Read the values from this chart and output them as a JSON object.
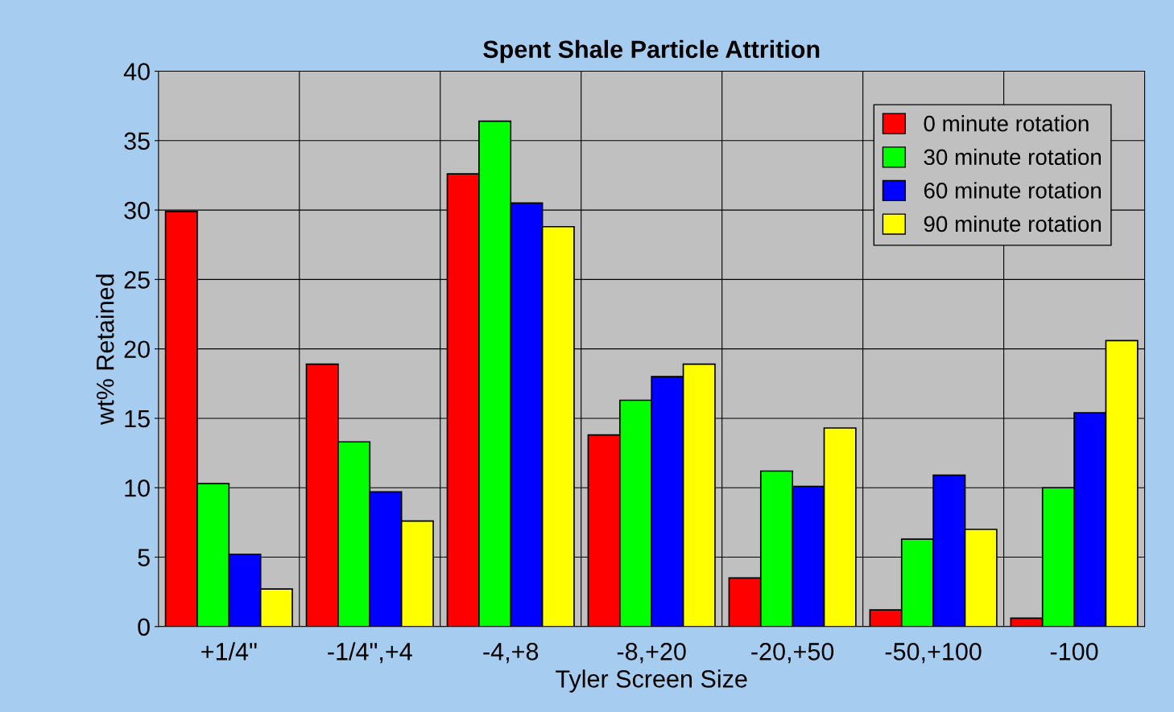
{
  "chart_data": {
    "type": "bar",
    "title": "Spent Shale Particle Attrition",
    "xlabel": "Tyler Screen Size",
    "ylabel": "wt% Retained",
    "categories": [
      "+1/4\"",
      "-1/4\",+4",
      "-4,+8",
      "-8,+20",
      "-20,+50",
      "-50,+100",
      "-100"
    ],
    "series": [
      {
        "name": "0 minute rotation",
        "color": "#ff0000",
        "values": [
          29.9,
          18.9,
          32.6,
          13.8,
          3.5,
          1.2,
          0.6
        ]
      },
      {
        "name": "30 minute rotation",
        "color": "#00ff00",
        "values": [
          10.3,
          13.3,
          36.4,
          16.3,
          11.2,
          6.3,
          10.0
        ]
      },
      {
        "name": "60 minute rotation",
        "color": "#0000ff",
        "values": [
          5.2,
          9.7,
          30.5,
          18.0,
          10.1,
          10.9,
          15.4
        ]
      },
      {
        "name": "90 minute rotation",
        "color": "#ffff00",
        "values": [
          2.7,
          7.6,
          28.8,
          18.9,
          14.3,
          7.0,
          20.6
        ]
      }
    ],
    "ylim": [
      0,
      40
    ],
    "yticks": [
      0,
      5,
      10,
      15,
      20,
      25,
      30,
      35,
      40
    ],
    "grid": true,
    "legend": "top right"
  }
}
